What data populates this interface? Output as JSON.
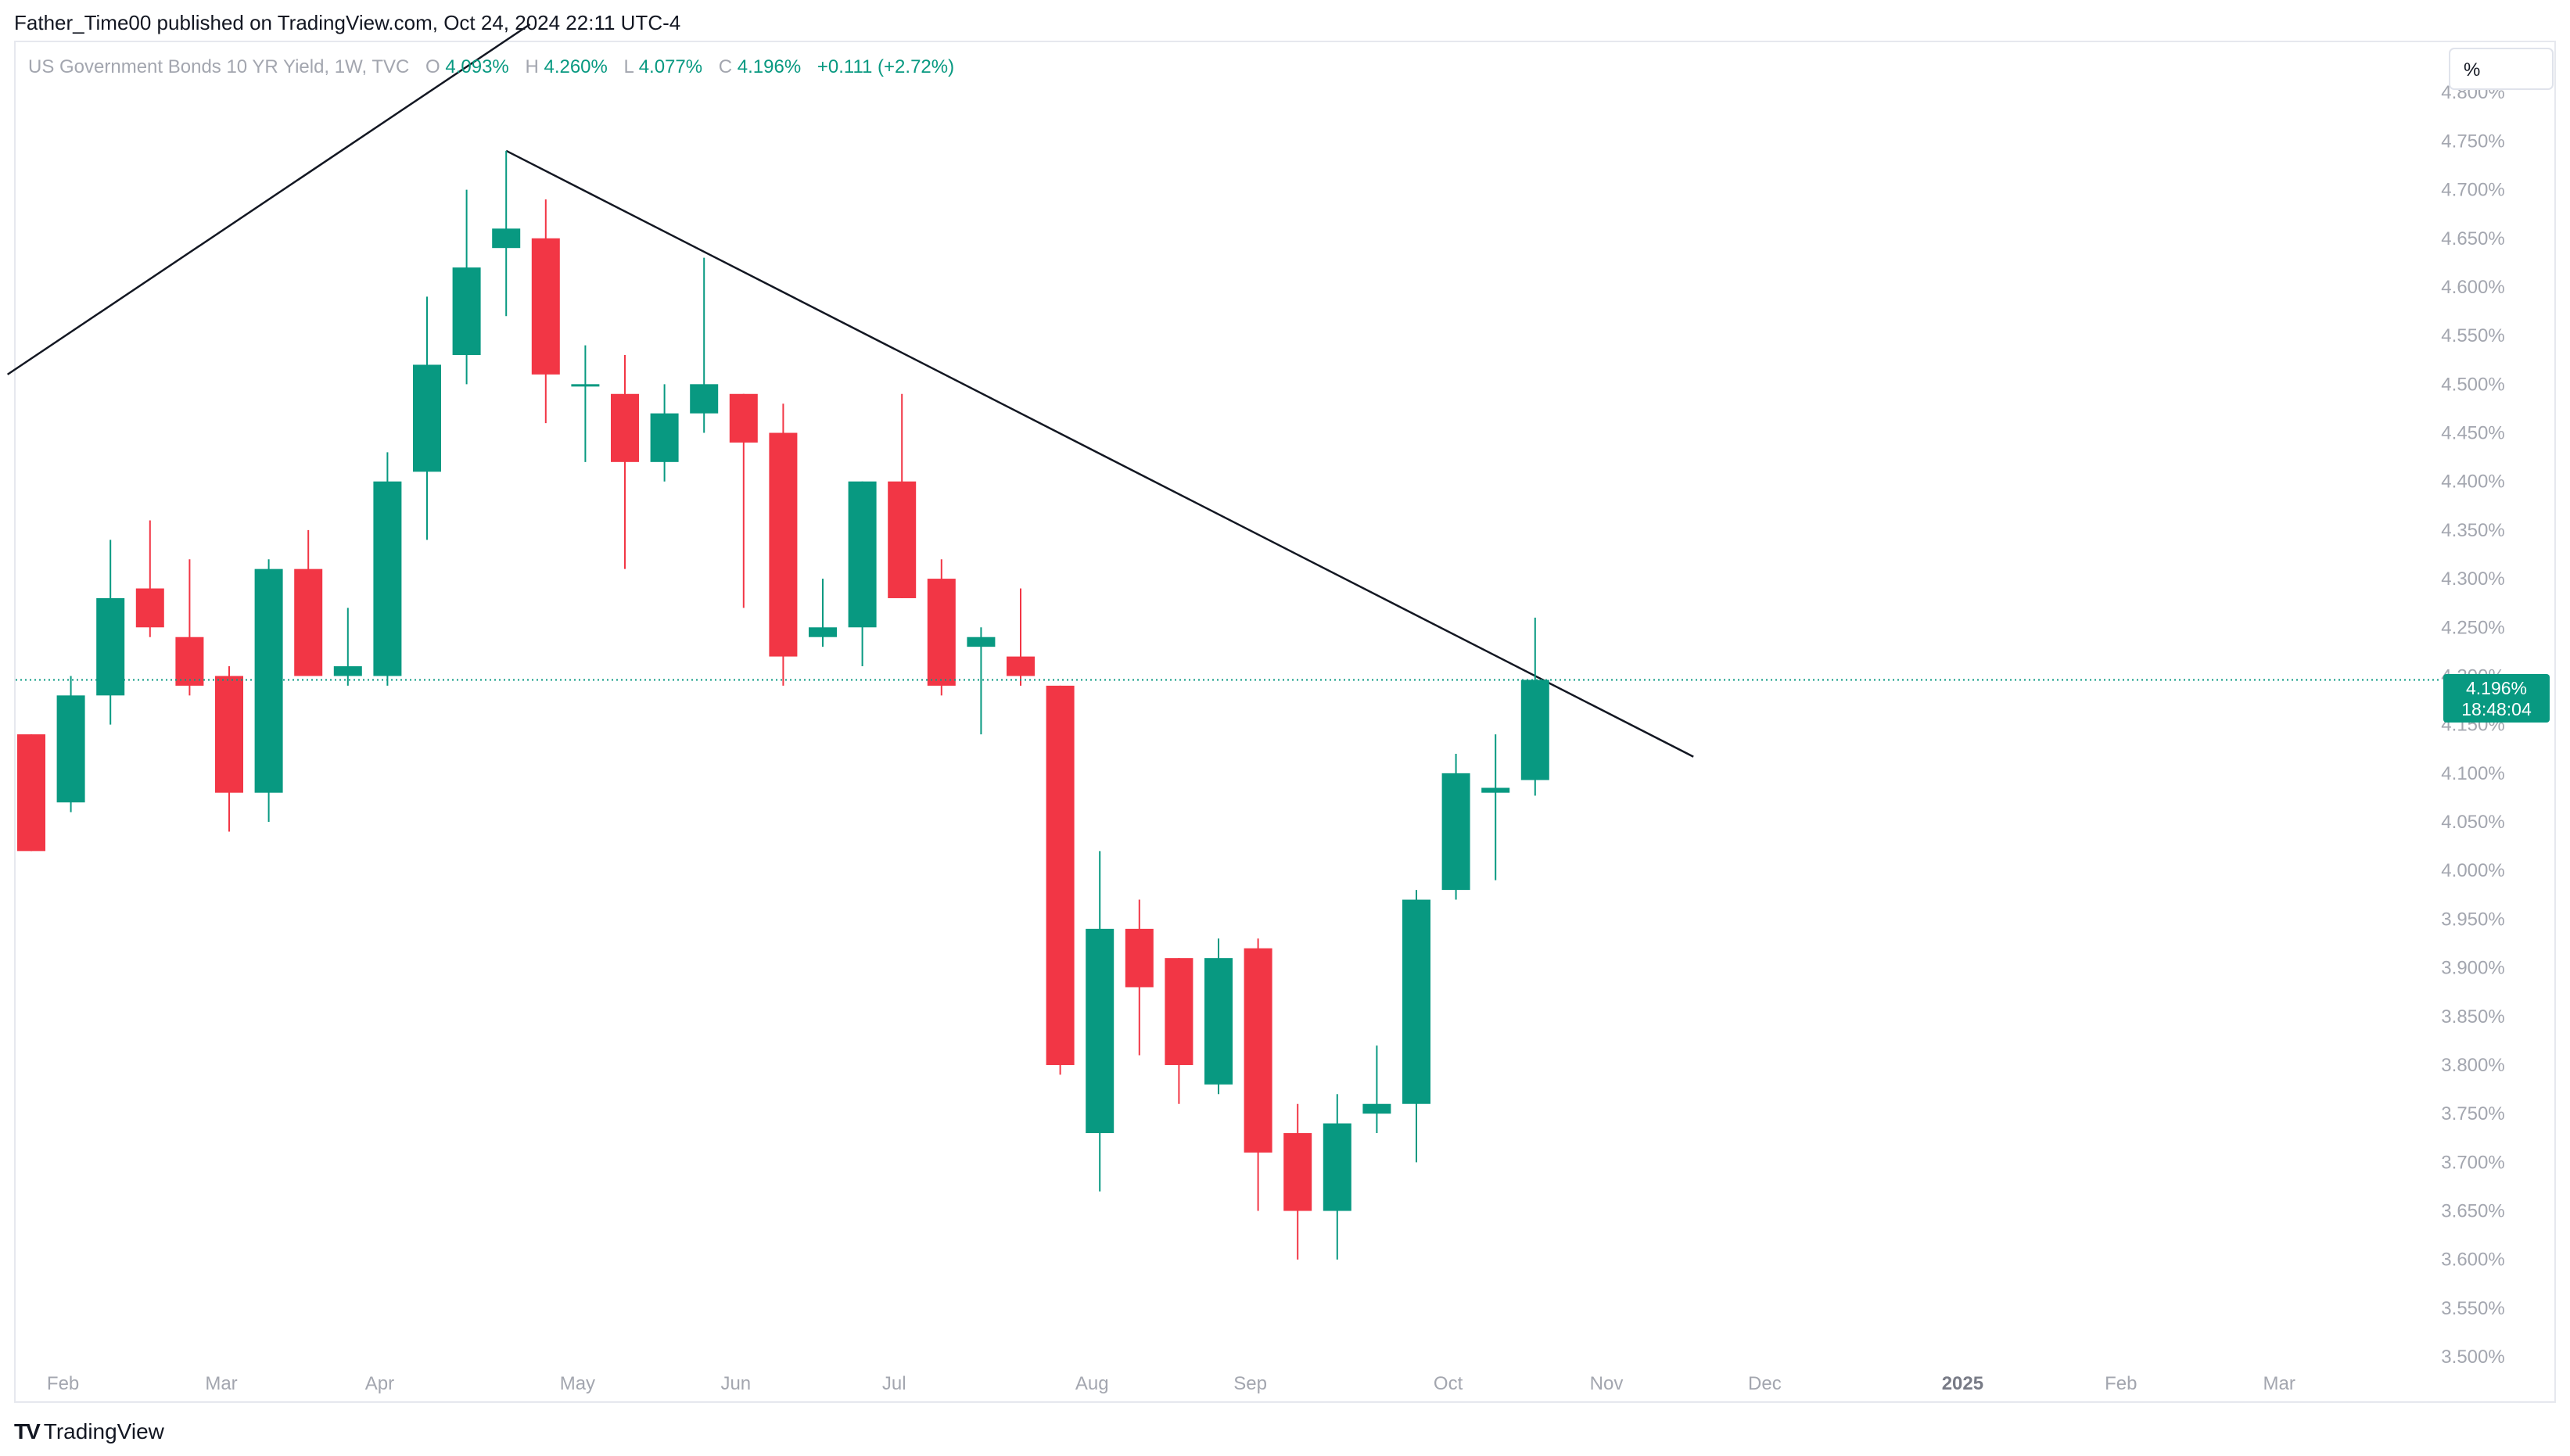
{
  "header": {
    "publisher_line": "Father_Time00 published on TradingView.com, Oct 24, 2024 22:11 UTC-4"
  },
  "footer": {
    "logo_glyph": "TV",
    "brand": "TradingView"
  },
  "colors": {
    "up": "#089981",
    "down": "#f23645",
    "grid_text": "#a3a6af",
    "trendline": "#131722",
    "last_price_bg": "#089981"
  },
  "chart_data": {
    "type": "candlestick",
    "legend": {
      "symbol": "US Government Bonds 10 YR Yield, 1W, TVC",
      "open_label": "O",
      "open": "4.093%",
      "high_label": "H",
      "high": "4.260%",
      "low_label": "L",
      "low": "4.077%",
      "close_label": "C",
      "close": "4.196%",
      "change": "+0.111 (+2.72%)"
    },
    "axis_unit_button": "%",
    "ylim": [
      3.48,
      4.85
    ],
    "y_ticks": [
      "4.800%",
      "4.750%",
      "4.700%",
      "4.650%",
      "4.600%",
      "4.550%",
      "4.500%",
      "4.450%",
      "4.400%",
      "4.350%",
      "4.300%",
      "4.250%",
      "4.200%",
      "4.150%",
      "4.100%",
      "4.050%",
      "4.000%",
      "3.950%",
      "3.900%",
      "3.850%",
      "3.800%",
      "3.750%",
      "3.700%",
      "3.650%",
      "3.600%",
      "3.550%",
      "3.500%"
    ],
    "x_ticks": [
      {
        "label": "Feb",
        "bar": 1
      },
      {
        "label": "Mar",
        "bar": 5
      },
      {
        "label": "Apr",
        "bar": 9
      },
      {
        "label": "May",
        "bar": 14
      },
      {
        "label": "Jun",
        "bar": 18
      },
      {
        "label": "Jul",
        "bar": 22
      },
      {
        "label": "Aug",
        "bar": 27
      },
      {
        "label": "Sep",
        "bar": 31
      },
      {
        "label": "Oct",
        "bar": 36
      },
      {
        "label": "Nov",
        "bar": 40
      },
      {
        "label": "Dec",
        "bar": 44
      },
      {
        "label": "2025",
        "bar": 49,
        "bold": true
      },
      {
        "label": "Feb",
        "bar": 53
      },
      {
        "label": "Mar",
        "bar": 57
      }
    ],
    "candles": [
      {
        "o": 4.14,
        "h": 4.14,
        "l": 4.02,
        "c": 4.02
      },
      {
        "o": 4.07,
        "h": 4.2,
        "l": 4.06,
        "c": 4.18
      },
      {
        "o": 4.18,
        "h": 4.34,
        "l": 4.15,
        "c": 4.28
      },
      {
        "o": 4.29,
        "h": 4.36,
        "l": 4.24,
        "c": 4.25
      },
      {
        "o": 4.24,
        "h": 4.32,
        "l": 4.18,
        "c": 4.19
      },
      {
        "o": 4.2,
        "h": 4.21,
        "l": 4.04,
        "c": 4.08
      },
      {
        "o": 4.08,
        "h": 4.32,
        "l": 4.05,
        "c": 4.31
      },
      {
        "o": 4.31,
        "h": 4.35,
        "l": 4.2,
        "c": 4.2
      },
      {
        "o": 4.2,
        "h": 4.27,
        "l": 4.19,
        "c": 4.21
      },
      {
        "o": 4.2,
        "h": 4.43,
        "l": 4.19,
        "c": 4.4
      },
      {
        "o": 4.41,
        "h": 4.59,
        "l": 4.34,
        "c": 4.52
      },
      {
        "o": 4.53,
        "h": 4.7,
        "l": 4.5,
        "c": 4.62
      },
      {
        "o": 4.64,
        "h": 4.74,
        "l": 4.57,
        "c": 4.66
      },
      {
        "o": 4.65,
        "h": 4.69,
        "l": 4.46,
        "c": 4.51
      },
      {
        "o": 4.5,
        "h": 4.54,
        "l": 4.42,
        "c": 4.5
      },
      {
        "o": 4.49,
        "h": 4.53,
        "l": 4.31,
        "c": 4.42
      },
      {
        "o": 4.42,
        "h": 4.5,
        "l": 4.4,
        "c": 4.47
      },
      {
        "o": 4.47,
        "h": 4.63,
        "l": 4.45,
        "c": 4.5
      },
      {
        "o": 4.49,
        "h": 4.49,
        "l": 4.27,
        "c": 4.44
      },
      {
        "o": 4.45,
        "h": 4.48,
        "l": 4.19,
        "c": 4.22
      },
      {
        "o": 4.24,
        "h": 4.3,
        "l": 4.23,
        "c": 4.25
      },
      {
        "o": 4.25,
        "h": 4.4,
        "l": 4.21,
        "c": 4.4
      },
      {
        "o": 4.4,
        "h": 4.49,
        "l": 4.28,
        "c": 4.28
      },
      {
        "o": 4.3,
        "h": 4.32,
        "l": 4.18,
        "c": 4.19
      },
      {
        "o": 4.23,
        "h": 4.25,
        "l": 4.14,
        "c": 4.24
      },
      {
        "o": 4.22,
        "h": 4.29,
        "l": 4.19,
        "c": 4.2
      },
      {
        "o": 4.19,
        "h": 4.19,
        "l": 3.79,
        "c": 3.8
      },
      {
        "o": 3.73,
        "h": 4.02,
        "l": 3.67,
        "c": 3.94
      },
      {
        "o": 3.94,
        "h": 3.97,
        "l": 3.81,
        "c": 3.88
      },
      {
        "o": 3.91,
        "h": 3.91,
        "l": 3.76,
        "c": 3.8
      },
      {
        "o": 3.78,
        "h": 3.93,
        "l": 3.77,
        "c": 3.91
      },
      {
        "o": 3.92,
        "h": 3.93,
        "l": 3.65,
        "c": 3.71
      },
      {
        "o": 3.73,
        "h": 3.76,
        "l": 3.6,
        "c": 3.65
      },
      {
        "o": 3.65,
        "h": 3.77,
        "l": 3.6,
        "c": 3.74
      },
      {
        "o": 3.75,
        "h": 3.82,
        "l": 3.73,
        "c": 3.76
      },
      {
        "o": 3.76,
        "h": 3.98,
        "l": 3.7,
        "c": 3.97
      },
      {
        "o": 3.98,
        "h": 4.12,
        "l": 3.97,
        "c": 4.1
      },
      {
        "o": 4.08,
        "h": 4.14,
        "l": 3.99,
        "c": 4.085
      },
      {
        "o": 4.093,
        "h": 4.26,
        "l": 4.077,
        "c": 4.196
      }
    ],
    "trendlines": [
      {
        "from": {
          "bar": -0.6,
          "y": 4.51
        },
        "to": {
          "bar": 12.6,
          "y": 4.87
        }
      },
      {
        "from": {
          "bar": 12.0,
          "y": 4.74
        },
        "to": {
          "bar": 42.0,
          "y": 4.117
        }
      }
    ],
    "last_price": {
      "value": 4.196,
      "label": "4.196%",
      "countdown": "18:48:04"
    }
  }
}
